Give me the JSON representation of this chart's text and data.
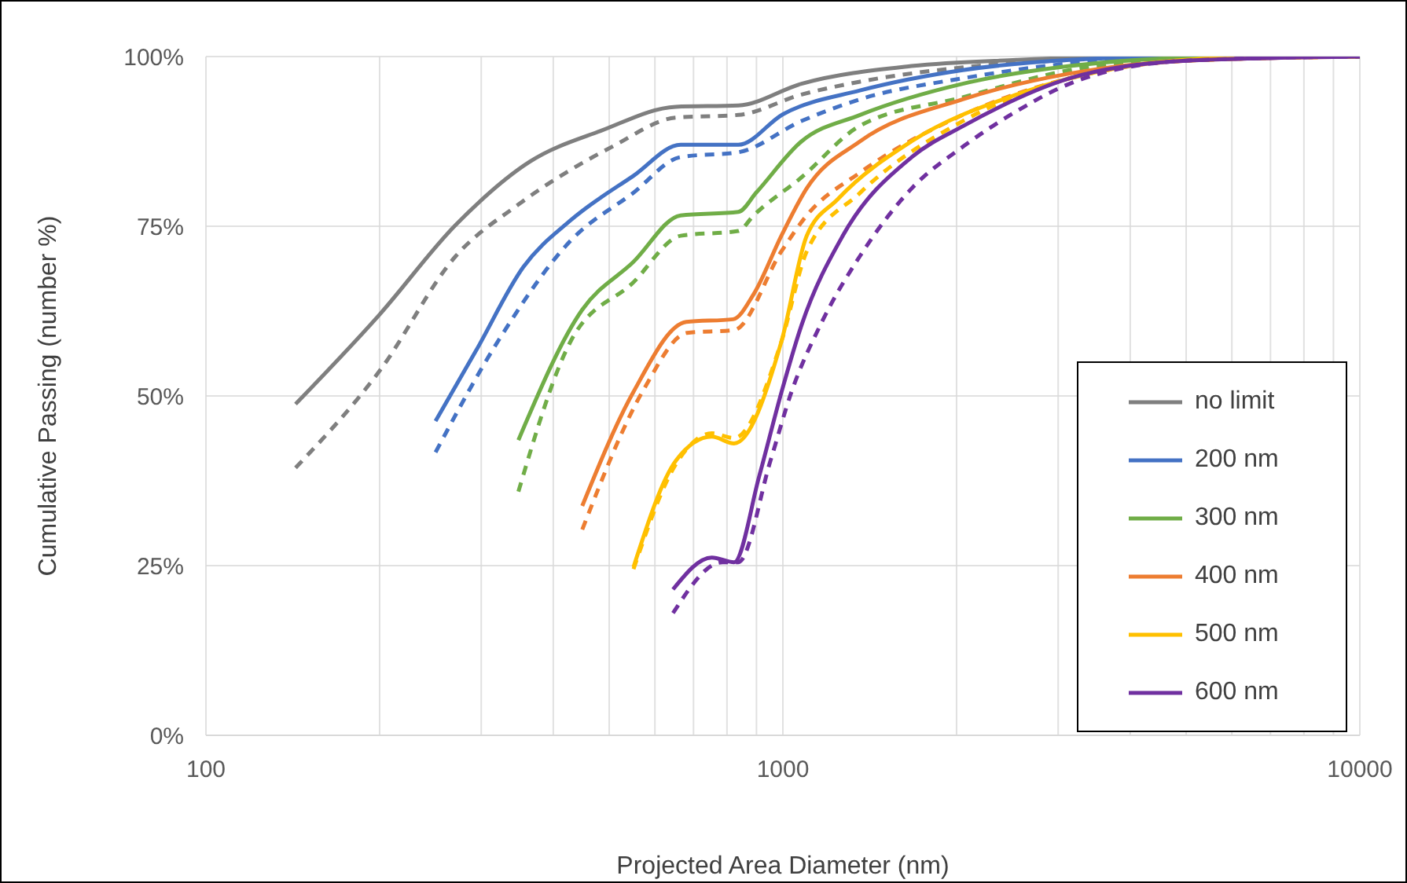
{
  "chart_data": {
    "type": "line",
    "xlabel": "Projected Area Diameter (nm)",
    "ylabel": "Cumulative Passing (number %)",
    "log": "x",
    "xlim": [
      100,
      10000
    ],
    "xticks": [
      100,
      1000,
      10000
    ],
    "ylim": [
      0,
      100
    ],
    "yticks": [
      {
        "value": 0,
        "label": "0%"
      },
      {
        "value": 25,
        "label": "25%"
      },
      {
        "value": 50,
        "label": "50%"
      },
      {
        "value": 75,
        "label": "75%"
      },
      {
        "value": 100,
        "label": "100%"
      }
    ],
    "grid": true,
    "legend": "bottom right",
    "marker": "none",
    "line_style": "solid",
    "series": [
      {
        "name": "no limit",
        "color": "#7f7f7f",
        "x": [
          143,
          200,
          271,
          364,
          485,
          652,
          837,
          1077,
          1670,
          2540,
          4000,
          10000
        ],
        "values": [
          48.8,
          62,
          75.2,
          84.5,
          89.1,
          92.6,
          92.8,
          96,
          98.6,
          99.5,
          100,
          100
        ]
      },
      {
        "color": "#7f7f7f",
        "line_style": "dashed",
        "x": [
          143,
          200,
          271,
          348,
          508,
          652,
          837,
          1077,
          1360,
          2050,
          3140,
          5000,
          10000
        ],
        "values": [
          39.4,
          53.7,
          70.6,
          78.2,
          86.8,
          91,
          91.4,
          94.4,
          96.3,
          98.4,
          99.5,
          100,
          100
        ]
      },
      {
        "name": "200 nm",
        "color": "#4472c4",
        "x": [
          250,
          294,
          355,
          429,
          550,
          665,
          837,
          1000,
          1360,
          2050,
          3140,
          5000,
          10000
        ],
        "values": [
          46.3,
          56.7,
          69,
          75.9,
          82.4,
          87,
          87,
          91.5,
          95,
          98,
          99.5,
          100,
          100
        ]
      },
      {
        "color": "#4472c4",
        "line_style": "dashed",
        "x": [
          250,
          321,
          429,
          550,
          665,
          837,
          1077,
          1360,
          2050,
          3140,
          5000,
          10000
        ],
        "values": [
          41.7,
          58.1,
          72.9,
          79.9,
          85.2,
          85.9,
          90.5,
          93.7,
          96.8,
          99,
          100,
          100
        ]
      },
      {
        "name": "300 nm",
        "color": "#70ad47",
        "x": [
          348,
          449,
          550,
          665,
          837,
          900,
          1077,
          1360,
          2050,
          3140,
          5000,
          10000
        ],
        "values": [
          43.5,
          62.7,
          69.7,
          76.6,
          77.1,
          80,
          87.5,
          91.4,
          96,
          98.6,
          99.8,
          100
        ]
      },
      {
        "color": "#70ad47",
        "line_style": "dashed",
        "x": [
          348,
          429,
          550,
          665,
          837,
          890,
          1077,
          1360,
          2050,
          3140,
          5000,
          10000
        ],
        "values": [
          35.9,
          58.1,
          66.7,
          73.6,
          74.3,
          76.6,
          82.2,
          89.8,
          94,
          98,
          99.7,
          100
        ]
      },
      {
        "name": "400 nm",
        "color": "#ed7d31",
        "x": [
          449,
          550,
          680,
          820,
          890,
          994,
          1100,
          1360,
          2050,
          3140,
          5000,
          10000
        ],
        "values": [
          33.8,
          50.5,
          60.9,
          61.3,
          65,
          73.6,
          80.6,
          87.5,
          93.7,
          97.5,
          99.4,
          100
        ]
      },
      {
        "color": "#ed7d31",
        "line_style": "dashed",
        "x": [
          449,
          576,
          682,
          823,
          994,
          1100,
          1360,
          2050,
          3140,
          5000,
          10000
        ],
        "values": [
          30.3,
          51.2,
          59.3,
          59.7,
          71.3,
          76.6,
          82.9,
          91.4,
          96.8,
          99.4,
          100
        ]
      },
      {
        "name": "500 nm",
        "color": "#ffc000",
        "x": [
          551,
          653,
          753,
          823,
          994,
          1100,
          1245,
          1670,
          2540,
          3850,
          5870,
          10000
        ],
        "values": [
          24.8,
          40.5,
          44,
          43,
          58,
          73.6,
          79,
          87.5,
          94.4,
          98.4,
          99.8,
          100
        ]
      },
      {
        "color": "#ffc000",
        "line_style": "dashed",
        "x": [
          551,
          653,
          753,
          823,
          994,
          1100,
          1360,
          2050,
          3140,
          5000,
          10000
        ],
        "values": [
          24.5,
          40,
          44.5,
          43.8,
          58,
          71.3,
          79.9,
          90.5,
          96.8,
          99.4,
          100
        ]
      },
      {
        "name": "600 nm",
        "color": "#7030a0",
        "x": [
          645,
          753,
          823,
          910,
          994,
          1077,
          1270,
          1673,
          2057,
          3140,
          5000,
          10000
        ],
        "values": [
          21.5,
          26.2,
          25.5,
          38.2,
          50.5,
          60.4,
          73.6,
          85.2,
          89.8,
          96.8,
          99.4,
          100
        ]
      },
      {
        "color": "#7030a0",
        "line_style": "dashed",
        "x": [
          645,
          786,
          837,
          952,
          1034,
          1170,
          1360,
          1673,
          2057,
          2548,
          3140,
          5000,
          10000
        ],
        "values": [
          18,
          25.5,
          25.5,
          40.5,
          50.5,
          61,
          70.6,
          80.6,
          86.8,
          92,
          96,
          99.4,
          100
        ]
      }
    ]
  }
}
